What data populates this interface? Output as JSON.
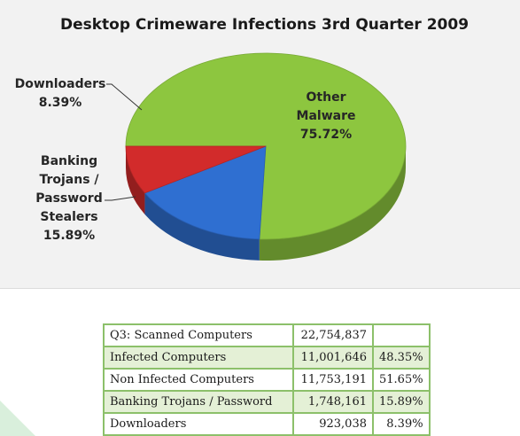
{
  "chart_data": {
    "type": "pie",
    "title": "Desktop Crimeware Infections 3rd Quarter 2009",
    "slices": [
      {
        "label": "Other Malware",
        "value": 75.72,
        "display": "75.72%",
        "color": "#8dc63f"
      },
      {
        "label": "Banking Trojans / Password Stealers",
        "value": 15.89,
        "display": "15.89%",
        "color": "#2f6fd1"
      },
      {
        "label": "Downloaders",
        "value": 8.39,
        "display": "8.39%",
        "color": "#d22b2b"
      }
    ],
    "labels": {
      "other": [
        "Other",
        "Malware",
        "75.72%"
      ],
      "banking": [
        "Banking",
        "Trojans /",
        "Password",
        "Stealers",
        "15.89%"
      ],
      "downloaders": [
        "Downloaders",
        "8.39%"
      ]
    }
  },
  "table": {
    "rows": [
      {
        "label": "Q3:  Scanned Computers",
        "count": "22,754,837",
        "pct": "",
        "shaded": false
      },
      {
        "label": "Infected Computers",
        "count": "11,001,646",
        "pct": "48.35%",
        "shaded": true
      },
      {
        "label": "Non Infected Computers",
        "count": "11,753,191",
        "pct": "51.65%",
        "shaded": false
      },
      {
        "label": "Banking Trojans / Password",
        "count": "1,748,161",
        "pct": "15.89%",
        "shaded": true
      },
      {
        "label": "Downloaders",
        "count": "923,038",
        "pct": "8.39%",
        "shaded": false
      }
    ]
  },
  "colors": {
    "table_border": "#8cc06a",
    "table_shade": "#e4f0d6",
    "panel_bg": "#f2f2f2"
  }
}
